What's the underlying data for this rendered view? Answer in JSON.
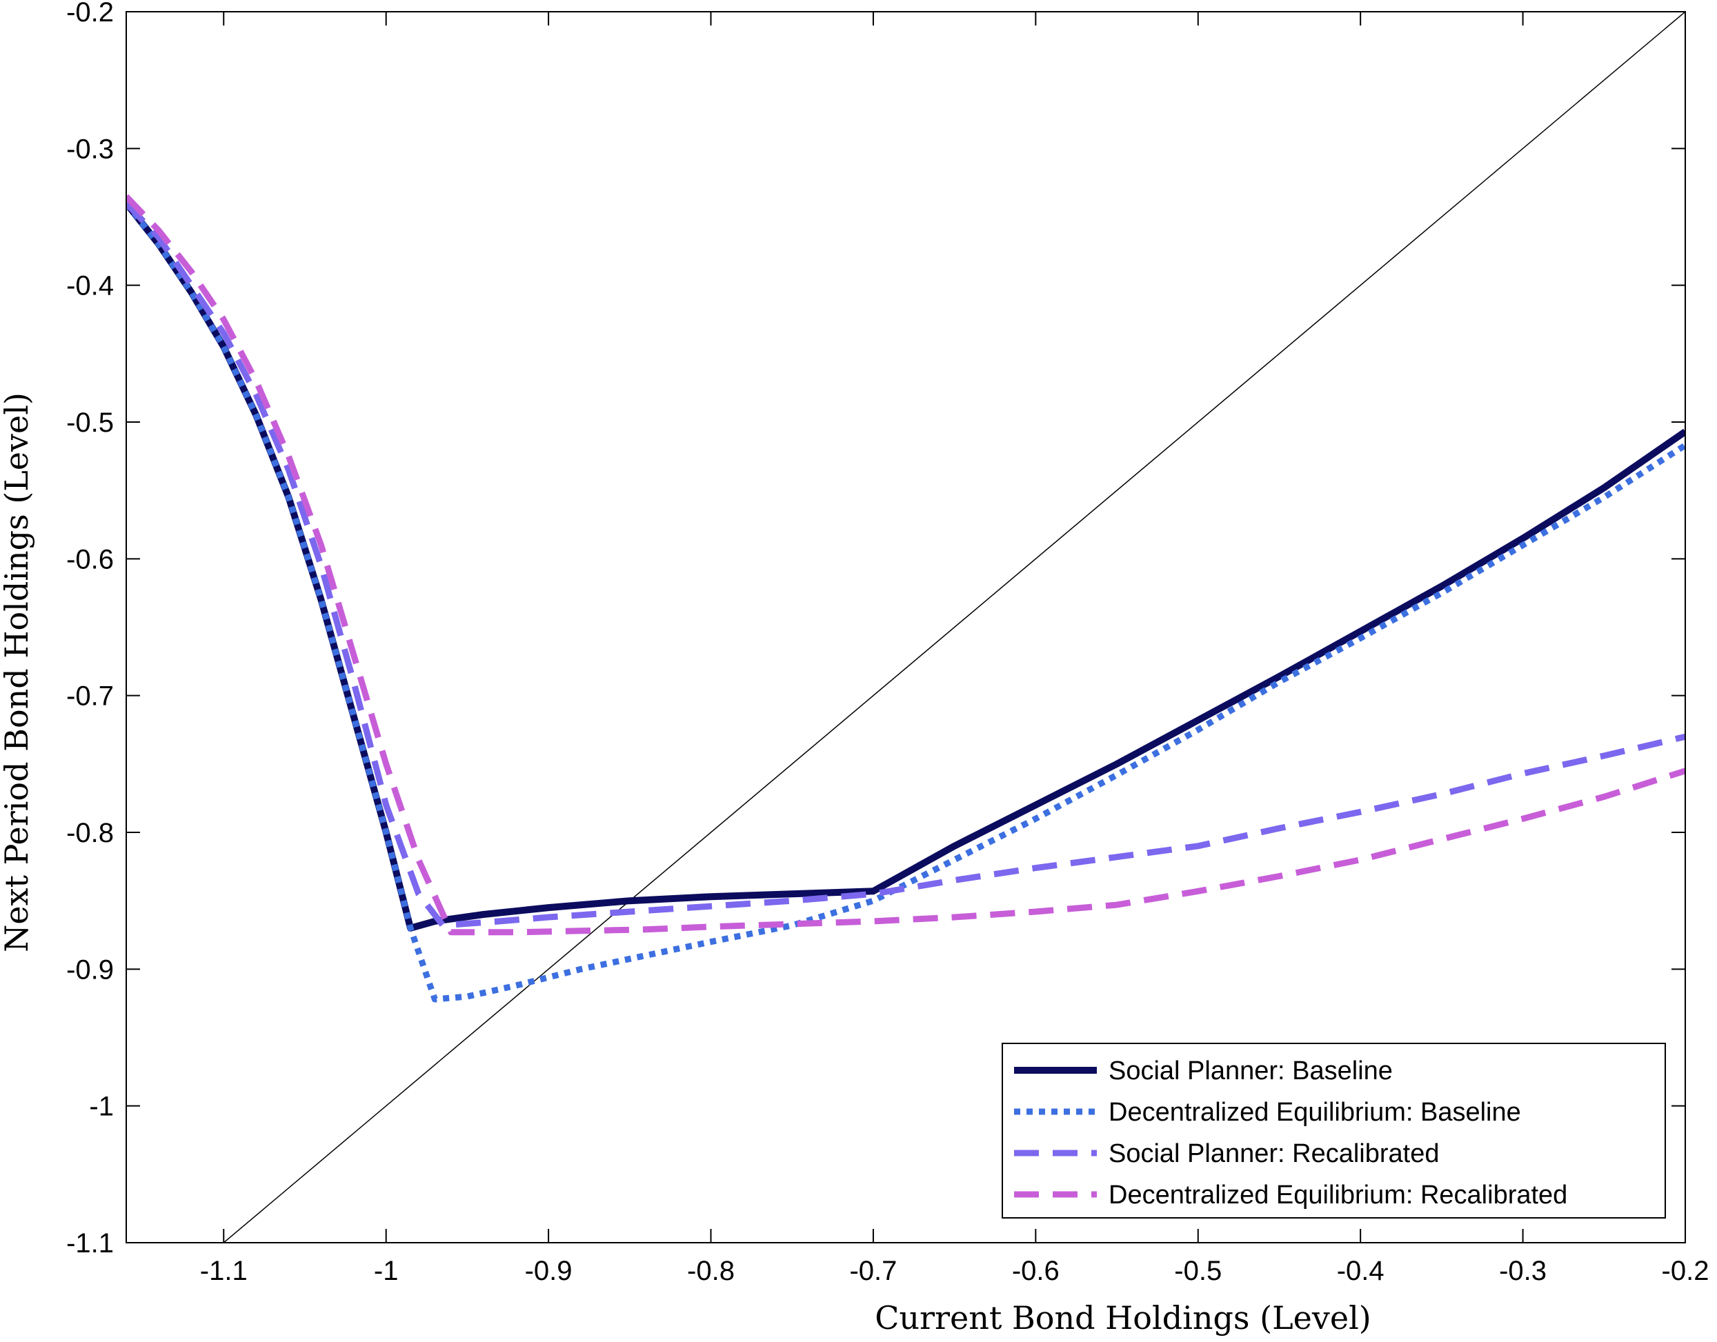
{
  "chart_data": {
    "type": "line",
    "xlabel": "Current Bond Holdings (Level)",
    "ylabel": "Next Period Bond Holdings (Level)",
    "xlim": [
      -1.16,
      -0.2
    ],
    "ylim": [
      -1.1,
      -0.2
    ],
    "xticks": [
      -1.1,
      -1,
      -0.9,
      -0.8,
      -0.7,
      -0.6,
      -0.5,
      -0.4,
      -0.3,
      -0.2
    ],
    "yticks": [
      -1.1,
      -1,
      -0.9,
      -0.8,
      -0.7,
      -0.6,
      -0.5,
      -0.4,
      -0.3,
      -0.2
    ],
    "xtick_labels": [
      "-1.1",
      "-1",
      "-0.9",
      "-0.8",
      "-0.7",
      "-0.6",
      "-0.5",
      "-0.4",
      "-0.3",
      "-0.2"
    ],
    "ytick_labels": [
      "-1.1",
      "-1",
      "-0.9",
      "-0.8",
      "-0.7",
      "-0.6",
      "-0.5",
      "-0.4",
      "-0.3",
      "-0.2"
    ],
    "grid": false,
    "legend_position": "bottom-right",
    "reference_line": {
      "style": "45-degree line",
      "color": "#000000",
      "points": [
        [
          -1.1,
          -1.1
        ],
        [
          -0.2,
          -0.2
        ]
      ]
    },
    "series": [
      {
        "name": "Social Planner: Baseline",
        "color": "#0b0c5e",
        "style": "solid",
        "points": [
          [
            -1.16,
            -0.34
          ],
          [
            -1.14,
            -0.37
          ],
          [
            -1.12,
            -0.405
          ],
          [
            -1.1,
            -0.445
          ],
          [
            -1.08,
            -0.495
          ],
          [
            -1.06,
            -0.555
          ],
          [
            -1.04,
            -0.63
          ],
          [
            -1.02,
            -0.715
          ],
          [
            -1.0,
            -0.8
          ],
          [
            -0.985,
            -0.87
          ],
          [
            -0.97,
            -0.865
          ],
          [
            -0.94,
            -0.86
          ],
          [
            -0.9,
            -0.855
          ],
          [
            -0.85,
            -0.85
          ],
          [
            -0.8,
            -0.847
          ],
          [
            -0.75,
            -0.845
          ],
          [
            -0.7,
            -0.843
          ],
          [
            -0.65,
            -0.81
          ],
          [
            -0.6,
            -0.78
          ],
          [
            -0.55,
            -0.75
          ],
          [
            -0.5,
            -0.718
          ],
          [
            -0.45,
            -0.686
          ],
          [
            -0.4,
            -0.653
          ],
          [
            -0.35,
            -0.62
          ],
          [
            -0.3,
            -0.585
          ],
          [
            -0.25,
            -0.548
          ],
          [
            -0.2,
            -0.507
          ]
        ]
      },
      {
        "name": "Decentralized Equilibrium: Baseline",
        "color": "#3c6fe0",
        "style": "dotted",
        "points": [
          [
            -1.16,
            -0.34
          ],
          [
            -1.14,
            -0.37
          ],
          [
            -1.12,
            -0.405
          ],
          [
            -1.1,
            -0.445
          ],
          [
            -1.08,
            -0.495
          ],
          [
            -1.06,
            -0.555
          ],
          [
            -1.04,
            -0.63
          ],
          [
            -1.02,
            -0.715
          ],
          [
            -1.0,
            -0.8
          ],
          [
            -0.985,
            -0.87
          ],
          [
            -0.97,
            -0.922
          ],
          [
            -0.95,
            -0.92
          ],
          [
            -0.92,
            -0.912
          ],
          [
            -0.88,
            -0.9
          ],
          [
            -0.84,
            -0.89
          ],
          [
            -0.8,
            -0.88
          ],
          [
            -0.75,
            -0.868
          ],
          [
            -0.7,
            -0.85
          ],
          [
            -0.65,
            -0.82
          ],
          [
            -0.6,
            -0.79
          ],
          [
            -0.55,
            -0.758
          ],
          [
            -0.5,
            -0.725
          ],
          [
            -0.45,
            -0.69
          ],
          [
            -0.4,
            -0.658
          ],
          [
            -0.35,
            -0.625
          ],
          [
            -0.3,
            -0.59
          ],
          [
            -0.25,
            -0.555
          ],
          [
            -0.2,
            -0.517
          ]
        ]
      },
      {
        "name": "Social Planner: Recalibrated",
        "color": "#7b68ee",
        "style": "dashed",
        "points": [
          [
            -1.16,
            -0.34
          ],
          [
            -1.14,
            -0.365
          ],
          [
            -1.12,
            -0.4
          ],
          [
            -1.1,
            -0.435
          ],
          [
            -1.08,
            -0.48
          ],
          [
            -1.06,
            -0.535
          ],
          [
            -1.04,
            -0.605
          ],
          [
            -1.02,
            -0.69
          ],
          [
            -1.0,
            -0.78
          ],
          [
            -0.98,
            -0.845
          ],
          [
            -0.965,
            -0.868
          ],
          [
            -0.93,
            -0.865
          ],
          [
            -0.9,
            -0.862
          ],
          [
            -0.85,
            -0.858
          ],
          [
            -0.8,
            -0.854
          ],
          [
            -0.75,
            -0.85
          ],
          [
            -0.7,
            -0.845
          ],
          [
            -0.65,
            -0.835
          ],
          [
            -0.6,
            -0.826
          ],
          [
            -0.55,
            -0.818
          ],
          [
            -0.5,
            -0.81
          ],
          [
            -0.45,
            -0.797
          ],
          [
            -0.4,
            -0.785
          ],
          [
            -0.35,
            -0.772
          ],
          [
            -0.3,
            -0.757
          ],
          [
            -0.25,
            -0.744
          ],
          [
            -0.2,
            -0.73
          ]
        ]
      },
      {
        "name": "Decentralized Equilibrium: Recalibrated",
        "color": "#c75ed8",
        "style": "dashed",
        "points": [
          [
            -1.16,
            -0.335
          ],
          [
            -1.14,
            -0.36
          ],
          [
            -1.12,
            -0.39
          ],
          [
            -1.1,
            -0.425
          ],
          [
            -1.08,
            -0.47
          ],
          [
            -1.06,
            -0.525
          ],
          [
            -1.04,
            -0.59
          ],
          [
            -1.02,
            -0.67
          ],
          [
            -1.0,
            -0.75
          ],
          [
            -0.98,
            -0.82
          ],
          [
            -0.96,
            -0.873
          ],
          [
            -0.92,
            -0.873
          ],
          [
            -0.88,
            -0.872
          ],
          [
            -0.84,
            -0.871
          ],
          [
            -0.8,
            -0.869
          ],
          [
            -0.75,
            -0.867
          ],
          [
            -0.7,
            -0.865
          ],
          [
            -0.65,
            -0.862
          ],
          [
            -0.6,
            -0.858
          ],
          [
            -0.55,
            -0.853
          ],
          [
            -0.5,
            -0.843
          ],
          [
            -0.45,
            -0.832
          ],
          [
            -0.4,
            -0.82
          ],
          [
            -0.35,
            -0.805
          ],
          [
            -0.3,
            -0.79
          ],
          [
            -0.25,
            -0.774
          ],
          [
            -0.2,
            -0.755
          ]
        ]
      }
    ]
  }
}
